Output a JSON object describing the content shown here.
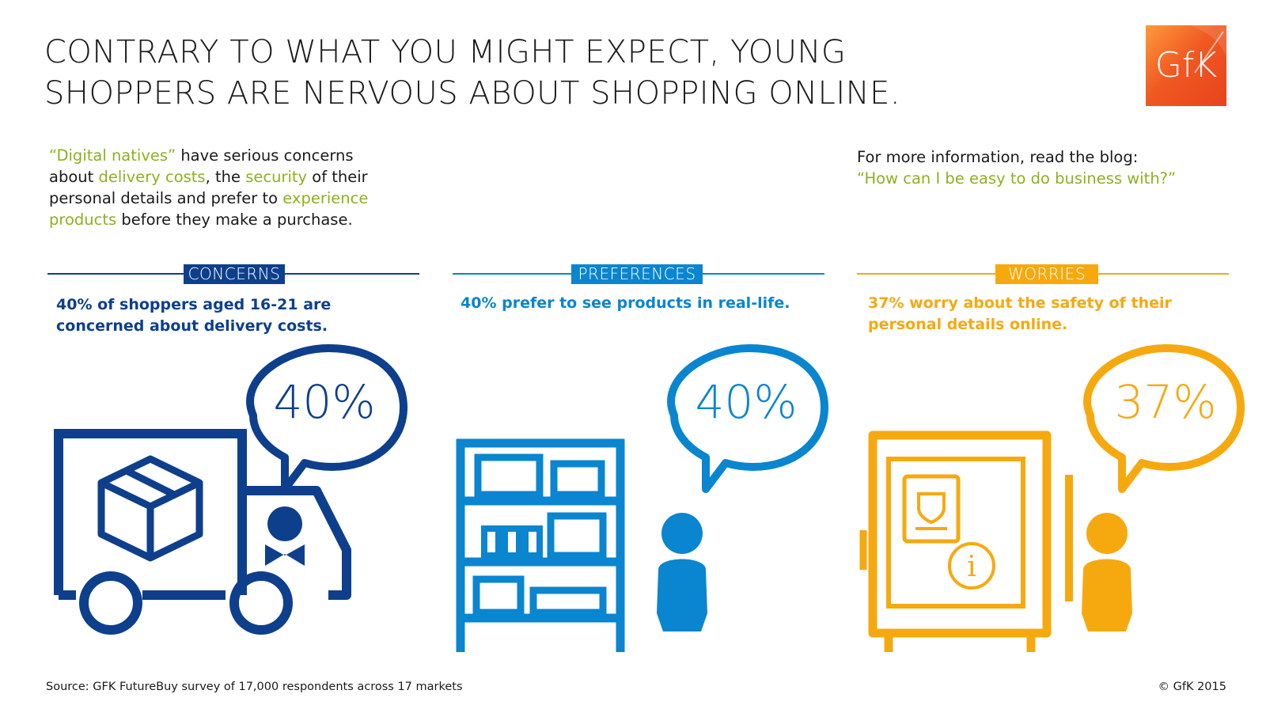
{
  "headline": {
    "line1": "CONTRARY TO WHAT YOU MIGHT EXPECT, YOUNG",
    "line2": "SHOPPERS ARE NERVOUS ABOUT SHOPPING ONLINE."
  },
  "logo": {
    "text": "GfK"
  },
  "intro": {
    "p1": "“Digital natives”",
    "p2": " have serious concerns about ",
    "p3": "delivery costs",
    "p4": ", the ",
    "p5": "security",
    "p6": " of their personal details and prefer to ",
    "p7": "experience products",
    "p8": " before they make a purchase."
  },
  "blog": {
    "prompt": "For more information, read the blog:",
    "link": "“How can I be easy to do business with?”"
  },
  "sections": {
    "concerns": {
      "tag": "CONCERNS",
      "text": "40% of shoppers aged 16-21 are concerned about delivery costs.",
      "pct": "40%",
      "value": 40,
      "color": "#0d3f8c"
    },
    "preferences": {
      "tag": "PREFERENCES",
      "text": "40% prefer to see products in real-life.",
      "pct": "40%",
      "value": 40,
      "color": "#0a85d0"
    },
    "worries": {
      "tag": "WORRIES",
      "text": "37% worry about the safety of their personal details online.",
      "pct": "37%",
      "value": 37,
      "color": "#f6a90f"
    }
  },
  "colors": {
    "accent_green": "#8cb11f",
    "logo_orange": "#f05a22",
    "text_dark": "#1a1a1a"
  },
  "icons": {
    "concerns": [
      "delivery-truck-icon",
      "package-box-icon",
      "driver-person-icon",
      "speech-bubble-icon"
    ],
    "preferences": [
      "shelf-icon",
      "person-icon",
      "speech-bubble-icon"
    ],
    "worries": [
      "safe-icon",
      "passport-icon",
      "info-icon",
      "person-icon",
      "speech-bubble-icon"
    ]
  },
  "footer": {
    "source": "Source: GFK FutureBuy survey of 17,000 respondents across 17 markets",
    "copyright": "© GfK 2015"
  }
}
